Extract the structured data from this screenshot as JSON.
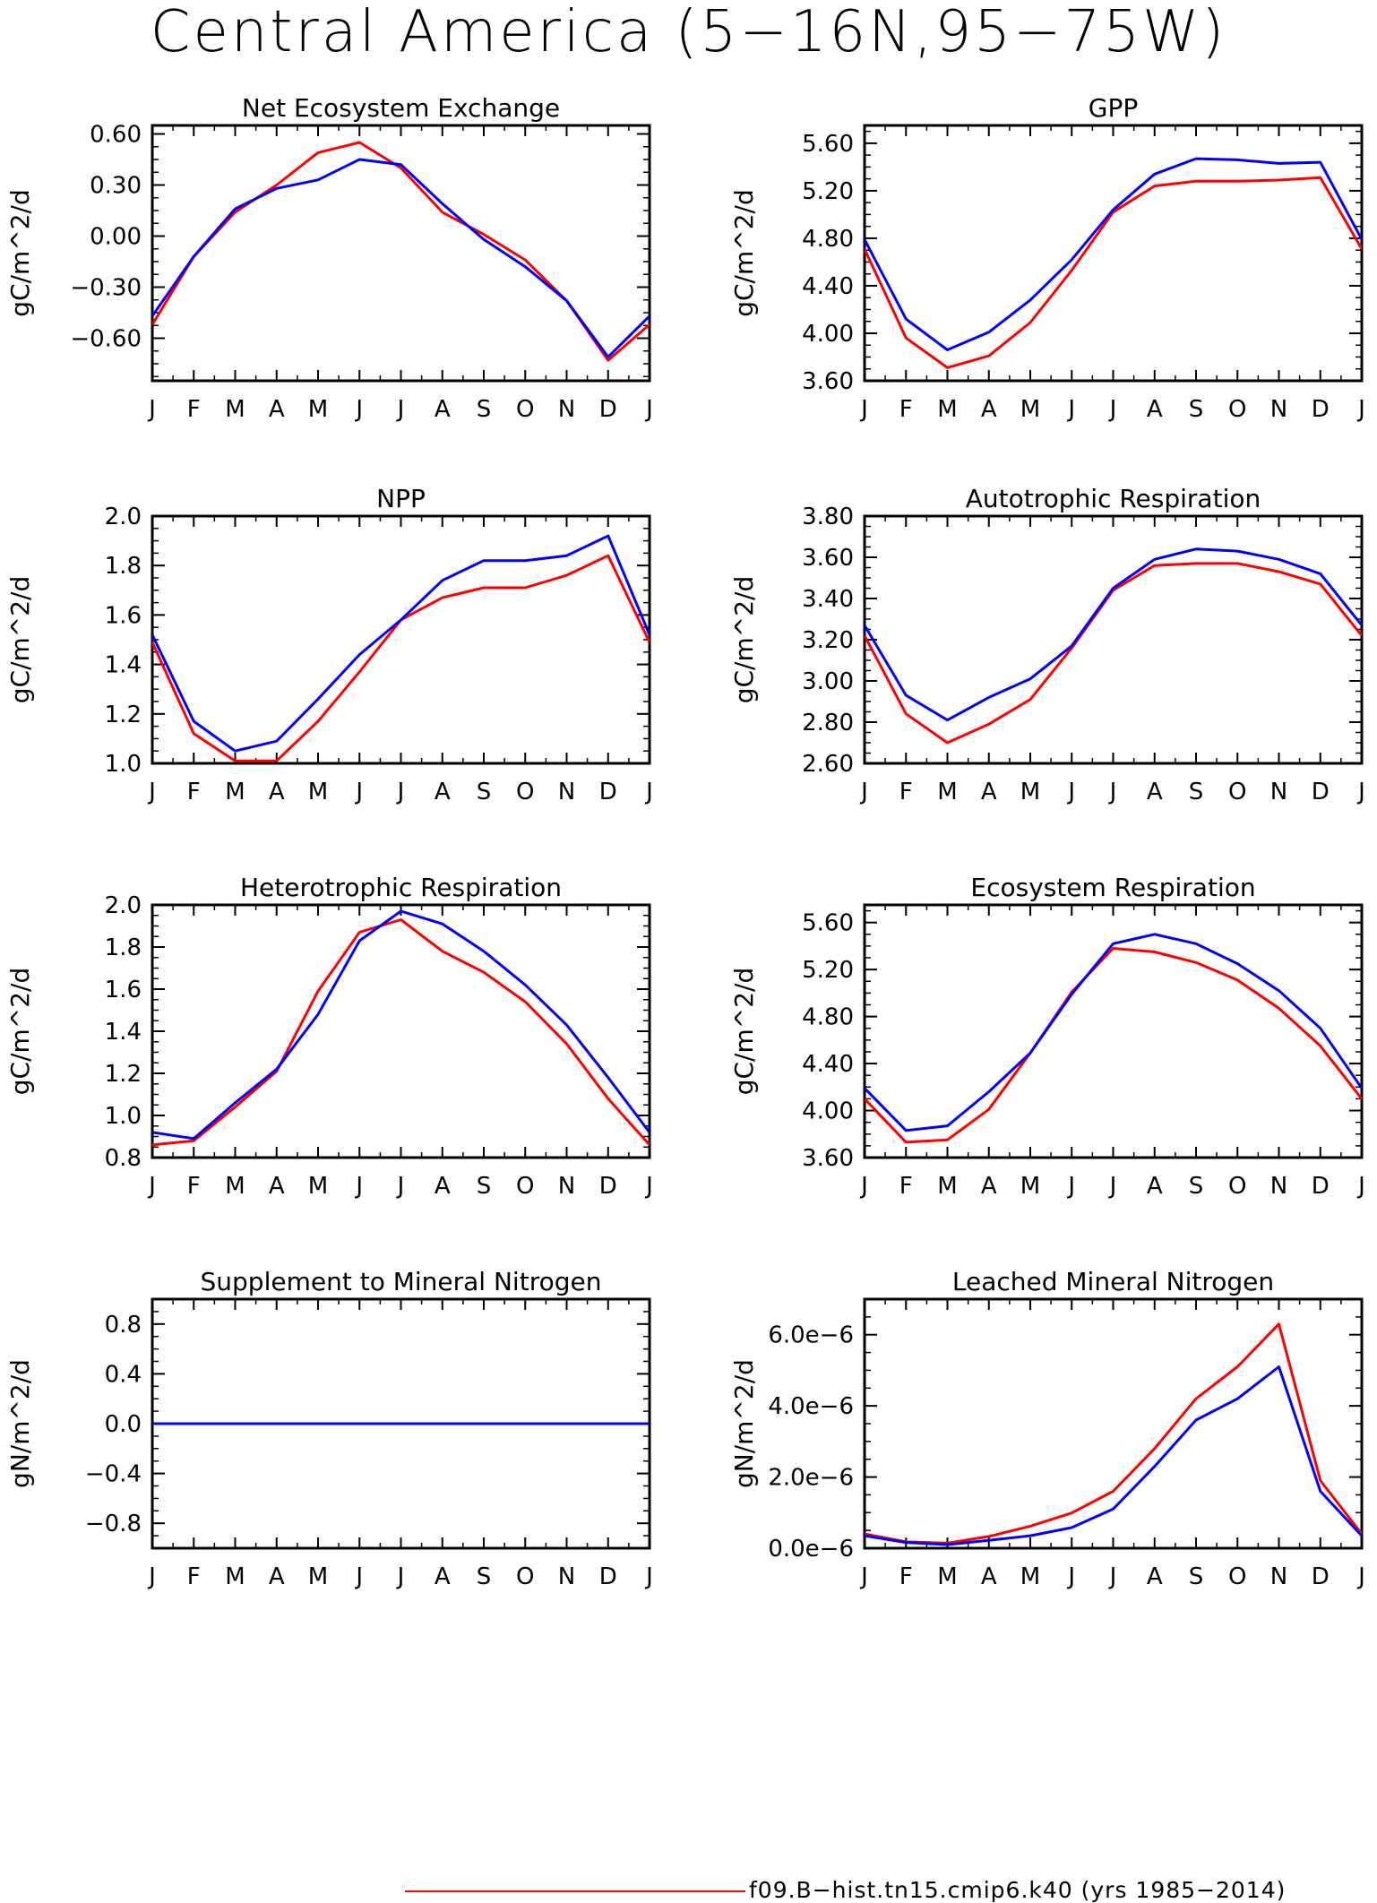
{
  "title": "Central America (5−16N,95−75W)",
  "legend": {
    "label": "f09.B−hist.tn15.cmip6.k40 (yrs 1985−2014)",
    "color": "#ff0000"
  },
  "colors": {
    "series_a": "#ff0000",
    "series_b": "#0000ff"
  },
  "chart_data": [
    {
      "type": "line",
      "title": "Net Ecosystem Exchange",
      "ylabel": "gC/m^2/d",
      "x": [
        "J",
        "F",
        "M",
        "A",
        "M",
        "J",
        "J",
        "A",
        "S",
        "O",
        "N",
        "D",
        "J"
      ],
      "ylim": [
        -0.85,
        0.65
      ],
      "yticks": [
        -0.6,
        -0.3,
        0.0,
        0.3,
        0.6
      ],
      "ytick_labels": [
        "−0.60",
        "−0.30",
        "0.00",
        "0.30",
        "0.60"
      ],
      "series": [
        {
          "color": "#ff0000",
          "values": [
            -0.52,
            -0.12,
            0.14,
            0.3,
            0.49,
            0.55,
            0.4,
            0.14,
            0.01,
            -0.14,
            -0.38,
            -0.73,
            -0.52
          ]
        },
        {
          "color": "#0000ff",
          "values": [
            -0.47,
            -0.12,
            0.16,
            0.28,
            0.33,
            0.45,
            0.42,
            0.19,
            -0.02,
            -0.18,
            -0.38,
            -0.71,
            -0.47
          ]
        }
      ]
    },
    {
      "type": "line",
      "title": "GPP",
      "ylabel": "gC/m^2/d",
      "x": [
        "J",
        "F",
        "M",
        "A",
        "M",
        "J",
        "J",
        "A",
        "S",
        "O",
        "N",
        "D",
        "J"
      ],
      "ylim": [
        3.6,
        5.75
      ],
      "yticks": [
        3.6,
        4.0,
        4.4,
        4.8,
        5.2,
        5.6
      ],
      "ytick_labels": [
        "3.60",
        "4.00",
        "4.40",
        "4.80",
        "5.20",
        "5.60"
      ],
      "series": [
        {
          "color": "#ff0000",
          "values": [
            4.71,
            3.96,
            3.71,
            3.81,
            4.09,
            4.53,
            5.02,
            5.24,
            5.28,
            5.28,
            5.29,
            5.31,
            4.71
          ]
        },
        {
          "color": "#0000ff",
          "values": [
            4.79,
            4.12,
            3.86,
            4.01,
            4.28,
            4.62,
            5.04,
            5.34,
            5.47,
            5.46,
            5.43,
            5.44,
            4.79
          ]
        }
      ]
    },
    {
      "type": "line",
      "title": "NPP",
      "ylabel": "gC/m^2/d",
      "x": [
        "J",
        "F",
        "M",
        "A",
        "M",
        "J",
        "J",
        "A",
        "S",
        "O",
        "N",
        "D",
        "J"
      ],
      "ylim": [
        1.0,
        2.0
      ],
      "yticks": [
        1.0,
        1.2,
        1.4,
        1.6,
        1.8,
        2.0
      ],
      "ytick_labels": [
        "1.0",
        "1.2",
        "1.4",
        "1.6",
        "1.8",
        "2.0"
      ],
      "series": [
        {
          "color": "#ff0000",
          "values": [
            1.49,
            1.12,
            1.01,
            1.01,
            1.17,
            1.37,
            1.58,
            1.67,
            1.71,
            1.71,
            1.76,
            1.84,
            1.49
          ]
        },
        {
          "color": "#0000ff",
          "values": [
            1.52,
            1.17,
            1.05,
            1.09,
            1.26,
            1.44,
            1.58,
            1.74,
            1.82,
            1.82,
            1.84,
            1.92,
            1.52
          ]
        }
      ]
    },
    {
      "type": "line",
      "title": "Autotrophic Respiration",
      "ylabel": "gC/m^2/d",
      "x": [
        "J",
        "F",
        "M",
        "A",
        "M",
        "J",
        "J",
        "A",
        "S",
        "O",
        "N",
        "D",
        "J"
      ],
      "ylim": [
        2.6,
        3.8
      ],
      "yticks": [
        2.6,
        2.8,
        3.0,
        3.2,
        3.4,
        3.6,
        3.8
      ],
      "ytick_labels": [
        "2.60",
        "2.80",
        "3.00",
        "3.20",
        "3.40",
        "3.60",
        "3.80"
      ],
      "series": [
        {
          "color": "#ff0000",
          "values": [
            3.22,
            2.84,
            2.7,
            2.79,
            2.91,
            3.16,
            3.44,
            3.56,
            3.57,
            3.57,
            3.53,
            3.47,
            3.22
          ]
        },
        {
          "color": "#0000ff",
          "values": [
            3.27,
            2.93,
            2.81,
            2.92,
            3.01,
            3.17,
            3.45,
            3.59,
            3.64,
            3.63,
            3.59,
            3.52,
            3.27
          ]
        }
      ]
    },
    {
      "type": "line",
      "title": "Heterotrophic Respiration",
      "ylabel": "gC/m^2/d",
      "x": [
        "J",
        "F",
        "M",
        "A",
        "M",
        "J",
        "J",
        "A",
        "S",
        "O",
        "N",
        "D",
        "J"
      ],
      "ylim": [
        0.8,
        2.0
      ],
      "yticks": [
        0.8,
        1.0,
        1.2,
        1.4,
        1.6,
        1.8,
        2.0
      ],
      "ytick_labels": [
        "0.8",
        "1.0",
        "1.2",
        "1.4",
        "1.6",
        "1.8",
        "2.0"
      ],
      "series": [
        {
          "color": "#ff0000",
          "values": [
            0.86,
            0.88,
            1.04,
            1.21,
            1.59,
            1.87,
            1.93,
            1.78,
            1.68,
            1.54,
            1.34,
            1.08,
            0.86
          ]
        },
        {
          "color": "#0000ff",
          "values": [
            0.92,
            0.89,
            1.06,
            1.22,
            1.48,
            1.83,
            1.97,
            1.91,
            1.78,
            1.62,
            1.43,
            1.18,
            0.92
          ]
        }
      ]
    },
    {
      "type": "line",
      "title": "Ecosystem Respiration",
      "ylabel": "gC/m^2/d",
      "x": [
        "J",
        "F",
        "M",
        "A",
        "M",
        "J",
        "J",
        "A",
        "S",
        "O",
        "N",
        "D",
        "J"
      ],
      "ylim": [
        3.6,
        5.75
      ],
      "yticks": [
        3.6,
        4.0,
        4.4,
        4.8,
        5.2,
        5.6
      ],
      "ytick_labels": [
        "3.60",
        "4.00",
        "4.40",
        "4.80",
        "5.20",
        "5.60"
      ],
      "series": [
        {
          "color": "#ff0000",
          "values": [
            4.1,
            3.73,
            3.75,
            4.01,
            4.49,
            5.01,
            5.38,
            5.35,
            5.26,
            5.11,
            4.87,
            4.55,
            4.1
          ]
        },
        {
          "color": "#0000ff",
          "values": [
            4.19,
            3.83,
            3.87,
            4.16,
            4.49,
            4.99,
            5.42,
            5.5,
            5.42,
            5.25,
            5.02,
            4.7,
            4.19
          ]
        }
      ]
    },
    {
      "type": "line",
      "title": "Supplement to Mineral Nitrogen",
      "ylabel": "gN/m^2/d",
      "x": [
        "J",
        "F",
        "M",
        "A",
        "M",
        "J",
        "J",
        "A",
        "S",
        "O",
        "N",
        "D",
        "J"
      ],
      "ylim": [
        -1.0,
        1.0
      ],
      "yticks": [
        -0.8,
        -0.4,
        0.0,
        0.4,
        0.8
      ],
      "ytick_labels": [
        "−0.8",
        "−0.4",
        "0.0",
        "0.4",
        "0.8"
      ],
      "series": [
        {
          "color": "#ff0000",
          "values": [
            0,
            0,
            0,
            0,
            0,
            0,
            0,
            0,
            0,
            0,
            0,
            0,
            0
          ]
        },
        {
          "color": "#0000ff",
          "values": [
            0,
            0,
            0,
            0,
            0,
            0,
            0,
            0,
            0,
            0,
            0,
            0,
            0
          ]
        }
      ]
    },
    {
      "type": "line",
      "title": "Leached Mineral Nitrogen",
      "ylabel": "gN/m^2/d",
      "x": [
        "J",
        "F",
        "M",
        "A",
        "M",
        "J",
        "J",
        "A",
        "S",
        "O",
        "N",
        "D",
        "J"
      ],
      "ylim": [
        0.0,
        7e-06
      ],
      "yticks": [
        0.0,
        2e-06,
        4e-06,
        6e-06
      ],
      "ytick_labels": [
        "0.0e−6",
        "2.0e−6",
        "4.0e−6",
        "6.0e−6"
      ],
      "series": [
        {
          "color": "#ff0000",
          "values": [
            4e-07,
            1.8e-07,
            1.4e-07,
            3.3e-07,
            6.2e-07,
            9.9e-07,
            1.6e-06,
            2.8e-06,
            4.2e-06,
            5.1e-06,
            6.3e-06,
            1.9e-06,
            4e-07
          ]
        },
        {
          "color": "#0000ff",
          "values": [
            3.5e-07,
            1.6e-07,
            1e-07,
            2.2e-07,
            3.5e-07,
            5.8e-07,
            1.1e-06,
            2.3e-06,
            3.6e-06,
            4.2e-06,
            5.1e-06,
            1.6e-06,
            3.5e-07
          ]
        }
      ]
    }
  ]
}
